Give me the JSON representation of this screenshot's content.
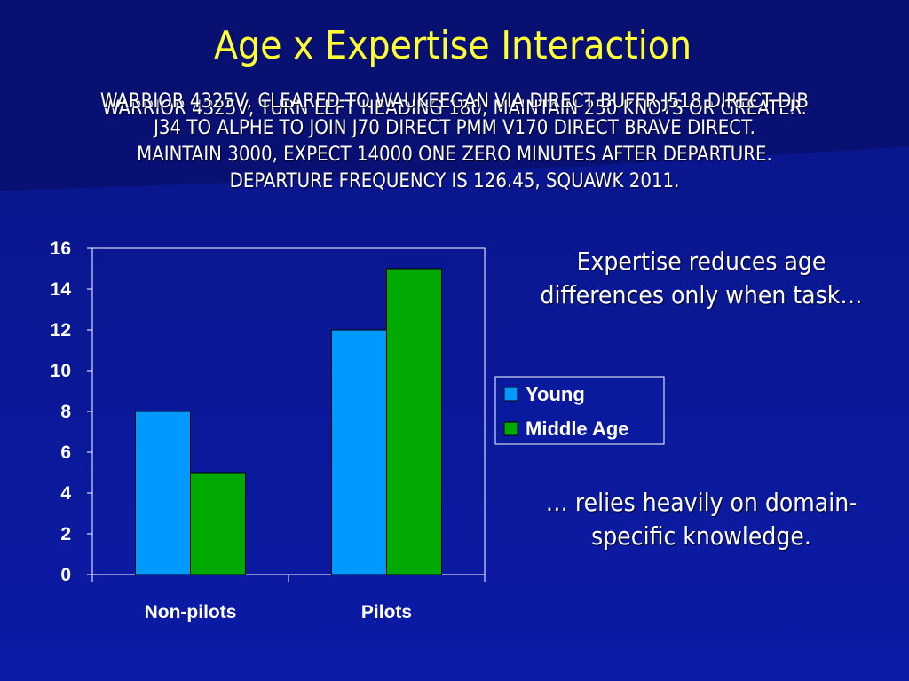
{
  "slide": {
    "title": "Age x Expertise Interaction",
    "clearance_a": [
      "WARRIOR 4325V, CLEARED TO WAUKEEGAN VIA DIRECT BUFFR J518 DIRECT DJB",
      "J34 TO ALPHE TO JOIN J70 DIRECT PMM V170  DIRECT BRAVE DIRECT.",
      "MAINTAIN 3000, EXPECT 14000 ONE ZERO MINUTES AFTER DEPARTURE.",
      "DEPARTURE FREQUENCY IS 126.45, SQUAWK 2011."
    ],
    "clearance_b": "WARRIOR 4325V, TURN LEFT HEADING 180, MAINTAIN 250 KNOTS OR GREATER.",
    "note_top": [
      "Expertise reduces age",
      "differences only when task…"
    ],
    "note_bottom": [
      "… relies heavily on domain-",
      "specific knowledge."
    ]
  },
  "colors": {
    "background": "#0a1a9e",
    "title": "#ffff33",
    "young": "#0099ff",
    "middle_age": "#00aa00"
  },
  "chart_data": {
    "type": "bar",
    "categories": [
      "Non-pilots",
      "Pilots"
    ],
    "series": [
      {
        "name": "Young",
        "values": [
          8,
          12
        ],
        "color": "#0099ff"
      },
      {
        "name": "Middle Age",
        "values": [
          5,
          15
        ],
        "color": "#00aa00"
      }
    ],
    "ylim": [
      0,
      16
    ],
    "yticks": [
      0,
      2,
      4,
      6,
      8,
      10,
      12,
      14,
      16
    ],
    "grid": false,
    "legend": "right"
  }
}
